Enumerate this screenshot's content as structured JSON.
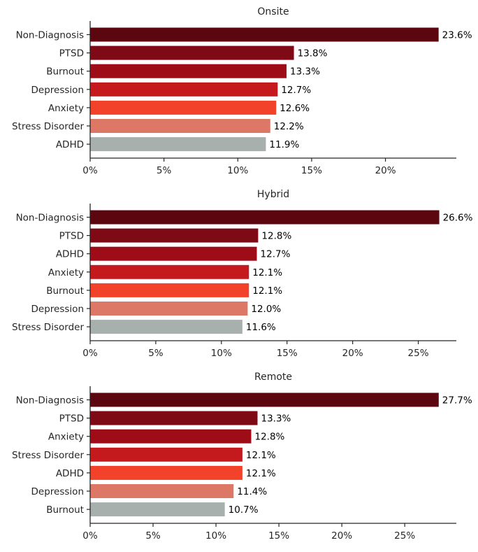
{
  "colors": [
    "#5c0610",
    "#7d0a14",
    "#9d0c17",
    "#c41a1e",
    "#f2432a",
    "#dc7865",
    "#a8b0ad"
  ],
  "chart_data": [
    {
      "type": "bar",
      "orientation": "horizontal",
      "title": "Onsite",
      "categories": [
        "Non-Diagnosis",
        "PTSD",
        "Burnout",
        "Depression",
        "Anxiety",
        "Stress Disorder",
        "ADHD"
      ],
      "values": [
        23.6,
        13.8,
        13.3,
        12.7,
        12.6,
        12.2,
        11.9
      ],
      "value_labels": [
        "23.6%",
        "13.8%",
        "13.3%",
        "12.7%",
        "12.6%",
        "12.2%",
        "11.9%"
      ],
      "xticks": [
        0,
        5,
        10,
        15,
        20
      ],
      "xtick_labels": [
        "0%",
        "5%",
        "10%",
        "15%",
        "20%"
      ],
      "xlim": [
        0,
        24.8
      ],
      "grid": false
    },
    {
      "type": "bar",
      "orientation": "horizontal",
      "title": "Hybrid",
      "categories": [
        "Non-Diagnosis",
        "PTSD",
        "ADHD",
        "Anxiety",
        "Burnout",
        "Depression",
        "Stress Disorder"
      ],
      "values": [
        26.6,
        12.8,
        12.7,
        12.1,
        12.1,
        12.0,
        11.6
      ],
      "value_labels": [
        "26.6%",
        "12.8%",
        "12.7%",
        "12.1%",
        "12.1%",
        "12.0%",
        "11.6%"
      ],
      "xticks": [
        0,
        5,
        10,
        15,
        20,
        25
      ],
      "xtick_labels": [
        "0%",
        "5%",
        "10%",
        "15%",
        "20%",
        "25%"
      ],
      "xlim": [
        0,
        27.9
      ],
      "grid": false
    },
    {
      "type": "bar",
      "orientation": "horizontal",
      "title": "Remote",
      "categories": [
        "Non-Diagnosis",
        "PTSD",
        "Anxiety",
        "Stress Disorder",
        "ADHD",
        "Depression",
        "Burnout"
      ],
      "values": [
        27.7,
        13.3,
        12.8,
        12.1,
        12.1,
        11.4,
        10.7
      ],
      "value_labels": [
        "27.7%",
        "13.3%",
        "12.8%",
        "12.1%",
        "12.1%",
        "11.4%",
        "10.7%"
      ],
      "xticks": [
        0,
        5,
        10,
        15,
        20,
        25
      ],
      "xtick_labels": [
        "0%",
        "5%",
        "10%",
        "15%",
        "20%",
        "25%"
      ],
      "xlim": [
        0,
        29.1
      ],
      "grid": false
    }
  ]
}
